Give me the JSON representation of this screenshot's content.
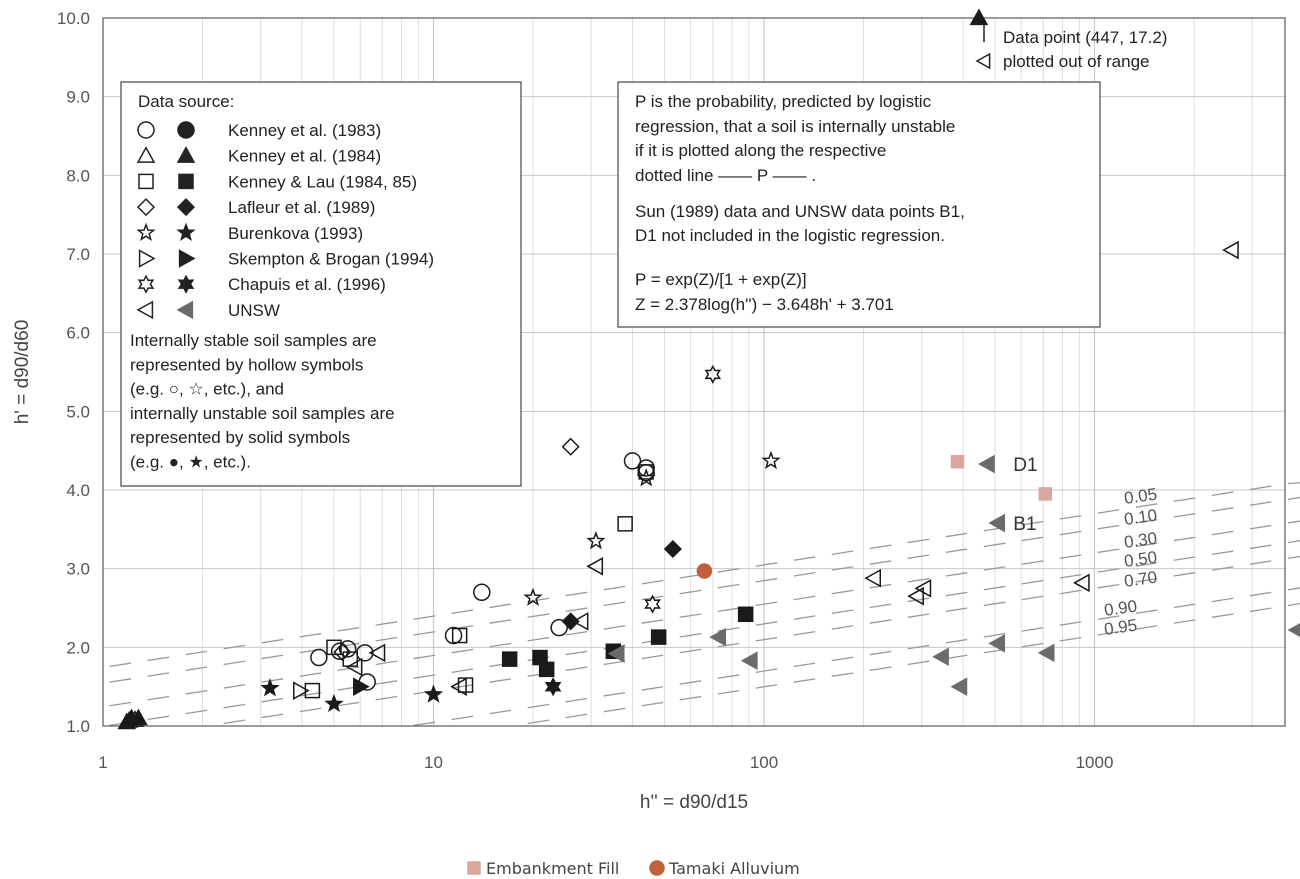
{
  "chart_data": {
    "type": "scatter",
    "xlabel": "h'' = d90/d15",
    "ylabel": "h' = d90/d60",
    "x_scale": "log",
    "xlim": [
      1,
      4500
    ],
    "ylim": [
      1.0,
      10.0
    ],
    "x_ticks": [
      "1",
      "10",
      "100",
      "1000"
    ],
    "y_ticks": [
      "1.0",
      "2.0",
      "3.0",
      "4.0",
      "5.0",
      "6.0",
      "7.0",
      "8.0",
      "9.0",
      "10.0"
    ],
    "grid": true,
    "source_legend": {
      "title": "Data source:",
      "entries": [
        {
          "label": "Kenney et al. (1983)",
          "marker": "circle"
        },
        {
          "label": "Kenney et al. (1984)",
          "marker": "triangle"
        },
        {
          "label": "Kenney & Lau (1984, 85)",
          "marker": "square"
        },
        {
          "label": "Lafleur et al. (1989)",
          "marker": "diamond"
        },
        {
          "label": "Burenkova (1993)",
          "marker": "star5"
        },
        {
          "label": "Skempton & Brogan (1994)",
          "marker": "tri-right"
        },
        {
          "label": "Chapuis et al. (1996)",
          "marker": "star6"
        },
        {
          "label": "UNSW",
          "marker": "tri-left"
        }
      ],
      "note_lines": [
        "Internally stable soil samples are",
        "represented by hollow symbols",
        "(e.g. ○, ☆, etc.), and",
        "internally unstable soil samples are",
        "represented by solid symbols",
        "(e.g. ●, ★, etc.)."
      ]
    },
    "info_box_lines": [
      "P is the probability, predicted by logistic",
      "regression, that a soil is internally unstable",
      "if it is plotted along the respective",
      "dotted line ——  P  ——  .",
      "Sun (1989) data and UNSW data points B1,",
      "D1 not included in the logistic regression.",
      "P = exp(Z)/[1 + exp(Z)]",
      "Z = 2.378log(h'') − 3.648h' + 3.701"
    ],
    "out_of_range_note": [
      "Data point (447, 17.2)",
      "plotted out of range"
    ],
    "probability_curves": [
      {
        "label": "0.05",
        "y_at_1000": 3.7
      },
      {
        "label": "0.10",
        "y_at_1000": 3.5
      },
      {
        "label": "0.30",
        "y_at_1000": 3.2
      },
      {
        "label": "0.50",
        "y_at_1000": 2.95
      },
      {
        "label": "0.70",
        "y_at_1000": 2.75
      },
      {
        "label": "0.90",
        "y_at_1000": 2.35
      },
      {
        "label": "0.95",
        "y_at_1000": 2.15
      }
    ],
    "point_labels": [
      {
        "text": "D1",
        "x": 560,
        "y": 4.33
      },
      {
        "text": "B1",
        "x": 560,
        "y": 3.58
      }
    ],
    "series": [
      {
        "marker": "circle",
        "filled": false,
        "points": [
          [
            4.5,
            1.87
          ],
          [
            5.2,
            1.95
          ],
          [
            5.5,
            1.98
          ],
          [
            6.2,
            1.93
          ],
          [
            6.3,
            1.56
          ],
          [
            11.5,
            2.15
          ],
          [
            14,
            2.7
          ],
          [
            24,
            2.25
          ],
          [
            40,
            4.37
          ],
          [
            44,
            4.28
          ],
          [
            44,
            4.22
          ]
        ]
      },
      {
        "marker": "triangle",
        "filled": false,
        "points": [
          [
            1.2,
            1.07
          ],
          [
            1.25,
            1.08
          ]
        ]
      },
      {
        "marker": "triangle",
        "filled": true,
        "points": [
          [
            1.18,
            1.05
          ],
          [
            1.22,
            1.1
          ],
          [
            1.28,
            1.1
          ],
          [
            447,
            10.0
          ]
        ]
      },
      {
        "marker": "square",
        "filled": false,
        "points": [
          [
            4.3,
            1.45
          ],
          [
            5.0,
            2.0
          ],
          [
            5.6,
            1.85
          ],
          [
            12,
            2.15
          ],
          [
            12.5,
            1.52
          ],
          [
            38,
            3.57
          ],
          [
            44,
            4.23
          ]
        ]
      },
      {
        "marker": "square",
        "filled": true,
        "points": [
          [
            17,
            1.85
          ],
          [
            21,
            1.87
          ],
          [
            22,
            1.72
          ],
          [
            35,
            1.95
          ],
          [
            48,
            2.13
          ],
          [
            88,
            2.42
          ]
        ]
      },
      {
        "marker": "diamond",
        "filled": false,
        "points": [
          [
            5.3,
            1.94
          ],
          [
            26,
            4.55
          ]
        ]
      },
      {
        "marker": "diamond",
        "filled": true,
        "points": [
          [
            26,
            2.33
          ],
          [
            53,
            3.25
          ]
        ]
      },
      {
        "marker": "star5",
        "filled": false,
        "points": [
          [
            20,
            2.63
          ],
          [
            31,
            3.35
          ],
          [
            44,
            4.15
          ],
          [
            105,
            4.37
          ]
        ]
      },
      {
        "marker": "star5",
        "filled": true,
        "points": [
          [
            3.2,
            1.48
          ],
          [
            5.0,
            1.28
          ],
          [
            10,
            1.4
          ]
        ]
      },
      {
        "marker": "tri-right",
        "filled": false,
        "points": [
          [
            3.95,
            1.45
          ]
        ]
      },
      {
        "marker": "tri-right",
        "filled": true,
        "points": [
          [
            6.0,
            1.5
          ]
        ]
      },
      {
        "marker": "star6",
        "filled": false,
        "points": [
          [
            46,
            2.55
          ],
          [
            70,
            5.47
          ]
        ]
      },
      {
        "marker": "star6",
        "filled": true,
        "points": [
          [
            23,
            1.5
          ]
        ]
      },
      {
        "marker": "tri-left",
        "filled": false,
        "points": [
          [
            5.8,
            1.75
          ],
          [
            6.8,
            1.93
          ],
          [
            12,
            1.5
          ],
          [
            28,
            2.33
          ],
          [
            31,
            3.03
          ],
          [
            215,
            2.88
          ],
          [
            290,
            2.65
          ],
          [
            305,
            2.75
          ],
          [
            920,
            2.82
          ],
          [
            2600,
            7.05
          ]
        ]
      },
      {
        "marker": "tri-left",
        "filled": true,
        "points": [
          [
            36,
            1.92
          ],
          [
            73,
            2.13
          ],
          [
            91,
            1.83
          ],
          [
            345,
            1.88
          ],
          [
            392,
            1.5
          ],
          [
            510,
            2.05
          ],
          [
            720,
            1.93
          ],
          [
            4100,
            2.22
          ],
          [
            475,
            4.33
          ],
          [
            510,
            3.58
          ]
        ]
      },
      {
        "marker": "square",
        "filled": true,
        "color": "#d9a79e",
        "name": "Embankment Fill",
        "points": [
          [
            385,
            4.36
          ],
          [
            710,
            3.95
          ]
        ]
      },
      {
        "marker": "circle",
        "filled": true,
        "color": "#c0603e",
        "name": "Tamaki Alluvium",
        "points": [
          [
            66,
            2.97
          ]
        ]
      }
    ],
    "bottom_legend": [
      {
        "label": "Embankment Fill",
        "marker": "square",
        "color": "#d9a79e"
      },
      {
        "label": "Tamaki Alluvium",
        "marker": "circle",
        "color": "#c0603e"
      }
    ],
    "colors": {
      "marker": "#1a1a1a",
      "unsw_filled": "#6b6b6b",
      "grid_major": "#c8c8c8",
      "grid_minor": "#dedede",
      "curves": "#999999"
    }
  }
}
